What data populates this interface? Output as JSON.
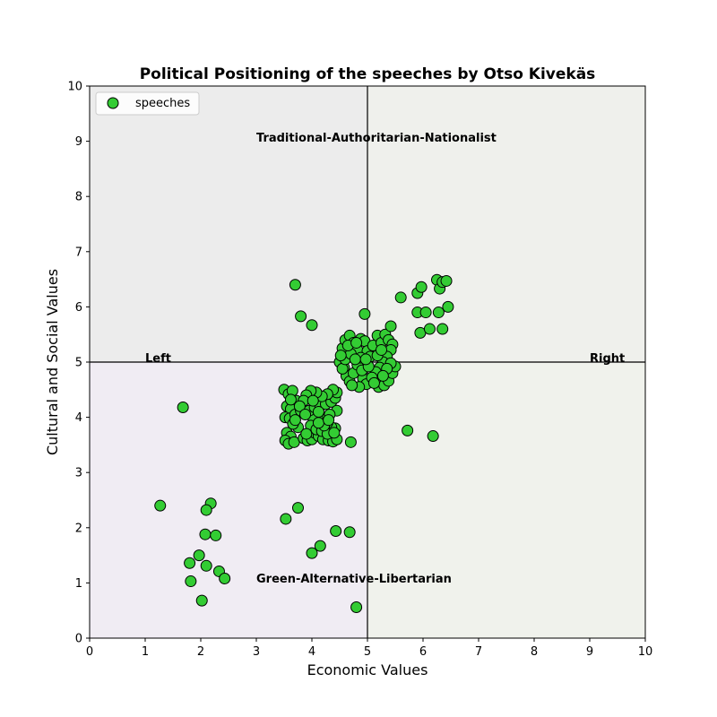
{
  "chart_data": {
    "type": "scatter",
    "title": "Political Positioning of the speeches by Otso Kivekäs",
    "xlabel": "Economic Values",
    "ylabel": "Cultural and Social Values",
    "xlim": [
      0,
      10
    ],
    "ylim": [
      0,
      10
    ],
    "xticks": [
      "0",
      "1",
      "2",
      "3",
      "4",
      "5",
      "6",
      "7",
      "8",
      "9",
      "10"
    ],
    "yticks": [
      "0",
      "1",
      "2",
      "3",
      "4",
      "5",
      "6",
      "7",
      "8",
      "9",
      "10"
    ],
    "grid": false,
    "legend": {
      "position": "top-left",
      "entries": [
        "speeches"
      ]
    },
    "quadrant_labels": {
      "top": "Traditional-Authoritarian-Nationalist",
      "bottom": "Green-Alternative-Libertarian",
      "left": "Left",
      "right": "Right"
    },
    "quadrant_colors": {
      "top_left": "#ececec",
      "top_right": "#eff0ec",
      "bottom_left": "#f0ecf3",
      "bottom_right": "#f0f2ec"
    },
    "marker_color": "#33cc33",
    "marker_edge": "#000000",
    "series": [
      {
        "name": "speeches",
        "points": [
          [
            3.7,
            6.4
          ],
          [
            3.8,
            5.83
          ],
          [
            4.0,
            5.67
          ],
          [
            4.95,
            5.87
          ],
          [
            5.6,
            6.17
          ],
          [
            5.9,
            6.25
          ],
          [
            5.97,
            6.36
          ],
          [
            6.25,
            6.49
          ],
          [
            6.3,
            6.33
          ],
          [
            6.35,
            6.45
          ],
          [
            6.42,
            6.47
          ],
          [
            5.9,
            5.9
          ],
          [
            6.05,
            5.9
          ],
          [
            6.28,
            5.9
          ],
          [
            6.45,
            6.0
          ],
          [
            5.95,
            5.53
          ],
          [
            6.12,
            5.6
          ],
          [
            6.35,
            5.6
          ],
          [
            1.68,
            4.18
          ],
          [
            1.27,
            2.4
          ],
          [
            2.18,
            2.44
          ],
          [
            2.1,
            2.32
          ],
          [
            2.08,
            1.88
          ],
          [
            2.27,
            1.86
          ],
          [
            1.97,
            1.5
          ],
          [
            1.8,
            1.36
          ],
          [
            2.1,
            1.31
          ],
          [
            2.33,
            1.21
          ],
          [
            2.43,
            1.08
          ],
          [
            1.82,
            1.03
          ],
          [
            2.02,
            0.68
          ],
          [
            3.53,
            2.16
          ],
          [
            3.75,
            2.36
          ],
          [
            4.43,
            1.94
          ],
          [
            4.68,
            1.92
          ],
          [
            4.15,
            1.67
          ],
          [
            4.0,
            1.54
          ],
          [
            4.8,
            0.56
          ],
          [
            5.72,
            3.76
          ],
          [
            6.18,
            3.66
          ],
          [
            4.7,
            3.55
          ],
          [
            3.5,
            4.5
          ],
          [
            3.58,
            4.42
          ],
          [
            3.65,
            4.48
          ],
          [
            3.72,
            4.3
          ],
          [
            3.55,
            4.2
          ],
          [
            3.62,
            4.15
          ],
          [
            3.52,
            4.0
          ],
          [
            3.6,
            3.98
          ],
          [
            3.7,
            4.05
          ],
          [
            3.8,
            4.12
          ],
          [
            3.55,
            3.72
          ],
          [
            3.62,
            3.65
          ],
          [
            3.52,
            3.58
          ],
          [
            3.58,
            3.52
          ],
          [
            3.68,
            3.55
          ],
          [
            3.75,
            3.82
          ],
          [
            3.66,
            3.88
          ],
          [
            3.85,
            3.62
          ],
          [
            3.92,
            3.58
          ],
          [
            4.0,
            3.6
          ],
          [
            4.05,
            3.72
          ],
          [
            4.12,
            3.66
          ],
          [
            4.2,
            3.6
          ],
          [
            4.3,
            3.58
          ],
          [
            4.38,
            3.56
          ],
          [
            4.45,
            3.6
          ],
          [
            4.42,
            3.8
          ],
          [
            4.35,
            3.82
          ],
          [
            4.28,
            3.9
          ],
          [
            4.2,
            3.95
          ],
          [
            4.1,
            3.98
          ],
          [
            4.0,
            4.02
          ],
          [
            3.95,
            4.12
          ],
          [
            4.05,
            4.18
          ],
          [
            4.15,
            4.2
          ],
          [
            4.25,
            4.24
          ],
          [
            4.35,
            4.28
          ],
          [
            4.42,
            4.35
          ],
          [
            4.45,
            4.45
          ],
          [
            4.38,
            4.5
          ],
          [
            4.28,
            4.42
          ],
          [
            4.18,
            4.38
          ],
          [
            4.08,
            4.45
          ],
          [
            3.98,
            4.48
          ],
          [
            3.9,
            4.4
          ],
          [
            3.85,
            4.3
          ],
          [
            3.78,
            4.2
          ],
          [
            3.88,
            4.05
          ],
          [
            3.98,
            3.85
          ],
          [
            4.08,
            3.78
          ],
          [
            4.18,
            3.75
          ],
          [
            4.28,
            3.7
          ],
          [
            4.4,
            3.72
          ],
          [
            4.45,
            4.12
          ],
          [
            4.32,
            4.05
          ],
          [
            4.22,
            3.85
          ],
          [
            4.12,
            3.9
          ],
          [
            3.7,
            3.95
          ],
          [
            3.62,
            4.32
          ],
          [
            4.02,
            4.3
          ],
          [
            4.12,
            4.1
          ],
          [
            3.9,
            3.7
          ],
          [
            4.3,
            3.95
          ],
          [
            4.5,
            5.0
          ],
          [
            4.55,
            5.25
          ],
          [
            4.6,
            5.4
          ],
          [
            4.68,
            5.48
          ],
          [
            4.75,
            5.35
          ],
          [
            4.82,
            5.22
          ],
          [
            4.88,
            5.42
          ],
          [
            4.95,
            5.38
          ],
          [
            5.0,
            5.2
          ],
          [
            5.05,
            5.1
          ],
          [
            4.58,
            4.9
          ],
          [
            4.62,
            4.75
          ],
          [
            4.68,
            4.65
          ],
          [
            4.75,
            4.8
          ],
          [
            4.82,
            4.95
          ],
          [
            4.88,
            5.08
          ],
          [
            4.92,
            4.7
          ],
          [
            4.98,
            4.6
          ],
          [
            4.85,
            4.55
          ],
          [
            4.72,
            4.58
          ],
          [
            4.55,
            4.88
          ],
          [
            4.6,
            5.05
          ],
          [
            4.7,
            5.15
          ],
          [
            4.78,
            5.05
          ],
          [
            4.9,
            4.85
          ],
          [
            5.1,
            5.3
          ],
          [
            5.18,
            5.48
          ],
          [
            5.25,
            5.35
          ],
          [
            5.32,
            5.5
          ],
          [
            5.38,
            5.4
          ],
          [
            5.45,
            5.32
          ],
          [
            5.42,
            5.22
          ],
          [
            5.35,
            5.1
          ],
          [
            5.28,
            5.0
          ],
          [
            5.22,
            4.9
          ],
          [
            5.15,
            4.82
          ],
          [
            5.08,
            4.72
          ],
          [
            5.2,
            4.55
          ],
          [
            5.3,
            4.58
          ],
          [
            5.38,
            4.66
          ],
          [
            5.45,
            4.8
          ],
          [
            5.5,
            4.92
          ],
          [
            5.42,
            4.98
          ],
          [
            5.35,
            4.88
          ],
          [
            5.28,
            4.75
          ],
          [
            5.12,
            4.62
          ],
          [
            5.02,
            4.92
          ],
          [
            5.18,
            5.12
          ],
          [
            5.25,
            5.22
          ],
          [
            4.52,
            5.12
          ],
          [
            4.65,
            5.3
          ],
          [
            4.8,
            5.35
          ],
          [
            4.97,
            5.05
          ],
          [
            5.42,
            5.65
          ]
        ]
      }
    ]
  }
}
